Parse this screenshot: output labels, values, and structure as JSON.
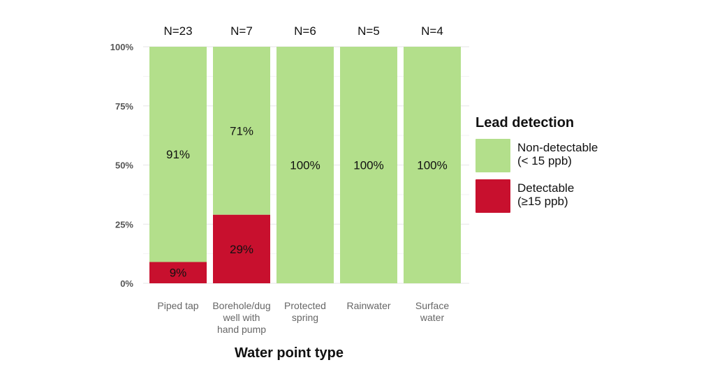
{
  "chart_data": {
    "type": "bar",
    "stacked": true,
    "percent": true,
    "xlabel": "Water point type",
    "ylabel": "",
    "ylim": [
      0,
      100
    ],
    "yticks": [
      "0%",
      "25%",
      "50%",
      "75%",
      "100%"
    ],
    "categories": [
      [
        "Piped tap"
      ],
      [
        "Borehole/dug",
        "well with",
        "hand pump"
      ],
      [
        "Protected",
        "spring"
      ],
      [
        "Rainwater"
      ],
      [
        "Surface",
        "water"
      ]
    ],
    "n_labels": [
      "N=23",
      "N=7",
      "N=6",
      "N=5",
      "N=4"
    ],
    "series": [
      {
        "name": [
          "Detectable",
          "(≥15 ppb)"
        ],
        "color": "#c8102e",
        "values": [
          9,
          29,
          0,
          0,
          0
        ],
        "labels": [
          "9%",
          "29%",
          "",
          "",
          ""
        ]
      },
      {
        "name": [
          "Non-detectable",
          "(< 15 ppb)"
        ],
        "color": "#b3df8b",
        "values": [
          91,
          71,
          100,
          100,
          100
        ],
        "labels": [
          "91%",
          "71%",
          "100%",
          "100%",
          "100%"
        ]
      }
    ],
    "legend": {
      "title": "Lead detection",
      "position": "right"
    },
    "grid": true
  }
}
